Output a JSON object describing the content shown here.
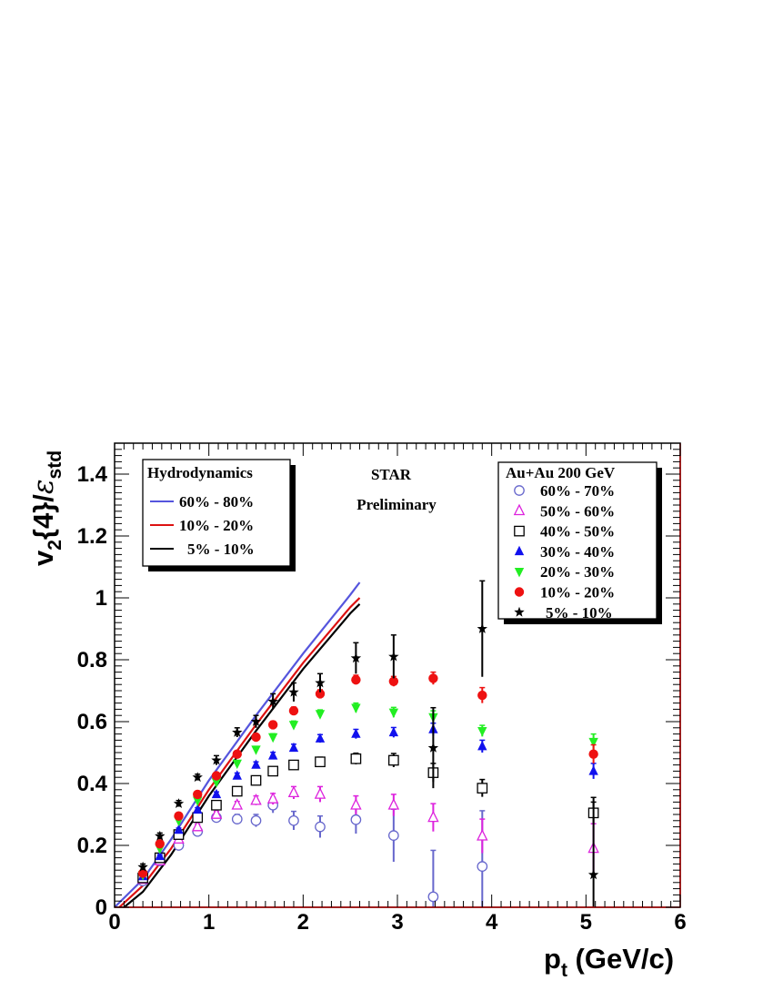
{
  "chart_data": {
    "type": "scatter",
    "xlim": [
      0,
      6
    ],
    "ylim": [
      0,
      1.5
    ],
    "x_ticks": [
      "0",
      "1",
      "2",
      "3",
      "4",
      "5",
      "6"
    ],
    "y_ticks": [
      "0",
      "0.2",
      "0.4",
      "0.6",
      "0.8",
      "1",
      "1.2",
      "1.4"
    ],
    "xlabel": {
      "main": "p",
      "sub": "t",
      "rest": " (GeV/c)"
    },
    "ylabel": {
      "v": "v",
      "sub": "2",
      "mid": "{4}/",
      "eps": "ε",
      "epssub": "std"
    },
    "annotations": {
      "line1": "STAR",
      "line2": "Preliminary"
    },
    "hydro_legend": {
      "title": "Hydrodynamics",
      "entries": [
        "60% - 80%",
        "10% - 20%",
        "5% - 10%"
      ]
    },
    "data_legend": {
      "title": "Au+Au 200 GeV",
      "entries": [
        "60% - 70%",
        "50% - 60%",
        "40% - 50%",
        "30% - 40%",
        "20% - 30%",
        "10% - 20%",
        "5% - 10%"
      ]
    },
    "hydro_curves": [
      {
        "name": "60% - 80%",
        "color": "#5555dd",
        "points": [
          [
            0.0,
            0.0
          ],
          [
            0.3,
            0.09
          ],
          [
            0.6,
            0.22
          ],
          [
            1.0,
            0.41
          ],
          [
            1.5,
            0.62
          ],
          [
            2.0,
            0.82
          ],
          [
            2.5,
            1.01
          ],
          [
            2.6,
            1.05
          ]
        ]
      },
      {
        "name": "10% - 20%",
        "color": "#dd1111",
        "points": [
          [
            0.05,
            0.0
          ],
          [
            0.3,
            0.07
          ],
          [
            0.6,
            0.19
          ],
          [
            1.0,
            0.38
          ],
          [
            1.5,
            0.59
          ],
          [
            2.0,
            0.79
          ],
          [
            2.5,
            0.97
          ],
          [
            2.6,
            1.0
          ]
        ]
      },
      {
        "name": "5% - 10%",
        "color": "#000000",
        "points": [
          [
            0.1,
            0.0
          ],
          [
            0.3,
            0.05
          ],
          [
            0.6,
            0.17
          ],
          [
            1.0,
            0.36
          ],
          [
            1.5,
            0.57
          ],
          [
            2.0,
            0.77
          ],
          [
            2.5,
            0.95
          ],
          [
            2.6,
            0.98
          ]
        ]
      }
    ],
    "series": [
      {
        "name": "60% - 70%",
        "marker": "circle-open",
        "color": "#6666cc",
        "points": [
          [
            0.3,
            0.085,
            0.01
          ],
          [
            0.48,
            0.15,
            0.01
          ],
          [
            0.68,
            0.2,
            0.01
          ],
          [
            0.88,
            0.245,
            0.01
          ],
          [
            1.08,
            0.29,
            0.01
          ],
          [
            1.3,
            0.285,
            0.015
          ],
          [
            1.5,
            0.28,
            0.02
          ],
          [
            1.68,
            0.33,
            0.025
          ],
          [
            1.9,
            0.28,
            0.03
          ],
          [
            2.18,
            0.26,
            0.035
          ],
          [
            2.56,
            0.283,
            0.045
          ],
          [
            2.96,
            0.232,
            0.085
          ],
          [
            3.38,
            0.034,
            0.15
          ],
          [
            3.9,
            0.132,
            0.18
          ]
        ]
      },
      {
        "name": "50% - 60%",
        "marker": "triangle-up-open",
        "color": "#dd22dd",
        "points": [
          [
            0.3,
            0.09,
            0.005
          ],
          [
            0.48,
            0.15,
            0.007
          ],
          [
            0.68,
            0.22,
            0.008
          ],
          [
            0.88,
            0.26,
            0.009
          ],
          [
            1.08,
            0.3,
            0.01
          ],
          [
            1.3,
            0.33,
            0.012
          ],
          [
            1.5,
            0.345,
            0.015
          ],
          [
            1.68,
            0.35,
            0.018
          ],
          [
            1.9,
            0.37,
            0.02
          ],
          [
            2.18,
            0.365,
            0.025
          ],
          [
            2.56,
            0.33,
            0.03
          ],
          [
            2.96,
            0.33,
            0.035
          ],
          [
            3.38,
            0.29,
            0.045
          ],
          [
            3.9,
            0.23,
            0.055
          ],
          [
            5.08,
            0.19,
            0.08
          ]
        ]
      },
      {
        "name": "40% - 50%",
        "marker": "square-open",
        "color": "#000000",
        "points": [
          [
            0.3,
            0.095,
            0.005
          ],
          [
            0.48,
            0.16,
            0.006
          ],
          [
            0.68,
            0.235,
            0.007
          ],
          [
            0.88,
            0.29,
            0.008
          ],
          [
            1.08,
            0.33,
            0.009
          ],
          [
            1.3,
            0.375,
            0.01
          ],
          [
            1.5,
            0.41,
            0.011
          ],
          [
            1.68,
            0.44,
            0.012
          ],
          [
            1.9,
            0.46,
            0.013
          ],
          [
            2.18,
            0.47,
            0.015
          ],
          [
            2.56,
            0.48,
            0.018
          ],
          [
            2.96,
            0.475,
            0.022
          ],
          [
            3.38,
            0.435,
            0.03
          ],
          [
            3.9,
            0.385,
            0.028
          ],
          [
            5.08,
            0.305,
            0.035
          ]
        ]
      },
      {
        "name": "30% - 40%",
        "marker": "triangle-up",
        "color": "#1111ee",
        "points": [
          [
            0.3,
            0.1,
            0.005
          ],
          [
            0.48,
            0.165,
            0.005
          ],
          [
            0.68,
            0.25,
            0.006
          ],
          [
            0.88,
            0.315,
            0.007
          ],
          [
            1.08,
            0.365,
            0.008
          ],
          [
            1.3,
            0.425,
            0.009
          ],
          [
            1.5,
            0.46,
            0.01
          ],
          [
            1.68,
            0.49,
            0.011
          ],
          [
            1.9,
            0.515,
            0.012
          ],
          [
            2.18,
            0.545,
            0.013
          ],
          [
            2.56,
            0.56,
            0.015
          ],
          [
            2.96,
            0.565,
            0.016
          ],
          [
            3.38,
            0.575,
            0.02
          ],
          [
            3.9,
            0.52,
            0.02
          ],
          [
            5.08,
            0.44,
            0.025
          ]
        ]
      },
      {
        "name": "20% - 30%",
        "marker": "triangle-down",
        "color": "#22ee22",
        "points": [
          [
            0.3,
            0.105,
            0.005
          ],
          [
            0.48,
            0.19,
            0.005
          ],
          [
            0.68,
            0.28,
            0.006
          ],
          [
            0.88,
            0.345,
            0.007
          ],
          [
            1.08,
            0.405,
            0.008
          ],
          [
            1.3,
            0.465,
            0.009
          ],
          [
            1.5,
            0.51,
            0.01
          ],
          [
            1.68,
            0.55,
            0.011
          ],
          [
            1.9,
            0.59,
            0.012
          ],
          [
            2.18,
            0.625,
            0.013
          ],
          [
            2.56,
            0.645,
            0.015
          ],
          [
            2.96,
            0.63,
            0.016
          ],
          [
            3.38,
            0.615,
            0.02
          ],
          [
            3.9,
            0.57,
            0.018
          ],
          [
            5.08,
            0.535,
            0.025
          ]
        ]
      },
      {
        "name": "10% - 20%",
        "marker": "circle",
        "color": "#ee1111",
        "points": [
          [
            0.3,
            0.11,
            0.005
          ],
          [
            0.48,
            0.205,
            0.005
          ],
          [
            0.68,
            0.295,
            0.006
          ],
          [
            0.88,
            0.365,
            0.007
          ],
          [
            1.08,
            0.425,
            0.008
          ],
          [
            1.3,
            0.495,
            0.009
          ],
          [
            1.5,
            0.55,
            0.01
          ],
          [
            1.68,
            0.59,
            0.011
          ],
          [
            1.9,
            0.635,
            0.012
          ],
          [
            2.18,
            0.69,
            0.013
          ],
          [
            2.56,
            0.735,
            0.015
          ],
          [
            2.96,
            0.73,
            0.016
          ],
          [
            3.38,
            0.74,
            0.02
          ],
          [
            3.9,
            0.685,
            0.025
          ],
          [
            5.08,
            0.495,
            0.03
          ]
        ]
      },
      {
        "name": "5% - 10%",
        "marker": "star",
        "color": "#000000",
        "points": [
          [
            0.3,
            0.13,
            0.01
          ],
          [
            0.48,
            0.23,
            0.01
          ],
          [
            0.68,
            0.335,
            0.01
          ],
          [
            0.88,
            0.42,
            0.01
          ],
          [
            1.08,
            0.475,
            0.015
          ],
          [
            1.3,
            0.565,
            0.015
          ],
          [
            1.5,
            0.6,
            0.02
          ],
          [
            1.68,
            0.665,
            0.025
          ],
          [
            1.9,
            0.695,
            0.03
          ],
          [
            2.18,
            0.725,
            0.03
          ],
          [
            2.56,
            0.805,
            0.05
          ],
          [
            2.96,
            0.81,
            0.07
          ],
          [
            3.38,
            0.515,
            0.13
          ],
          [
            3.9,
            0.9,
            0.155
          ],
          [
            5.08,
            0.105,
            0.25
          ]
        ]
      }
    ]
  }
}
